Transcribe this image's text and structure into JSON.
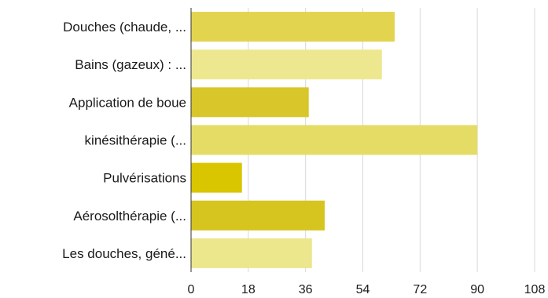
{
  "chart_data": {
    "type": "bar",
    "orientation": "horizontal",
    "categories": [
      "Douches (chaude, ...",
      "Bains (gazeux) : ...",
      "Application de boue",
      "kinésithérapie  (...",
      "Pulvérisations",
      "Aérosolthérapie (...",
      "Les douches, géné..."
    ],
    "values": [
      64,
      60,
      37,
      90,
      16,
      42,
      38
    ],
    "bar_colors": [
      "#e3d44f",
      "#ede890",
      "#d8c62a",
      "#e5dc66",
      "#d9c500",
      "#d6c41f",
      "#ece68c"
    ],
    "xlim": [
      0,
      108
    ],
    "xticks": [
      "0",
      "18",
      "36",
      "54",
      "72",
      "90",
      "108"
    ],
    "tick_values": [
      0,
      18,
      36,
      54,
      72,
      90,
      108
    ],
    "grid": true,
    "title": "",
    "xlabel": "",
    "ylabel": ""
  }
}
